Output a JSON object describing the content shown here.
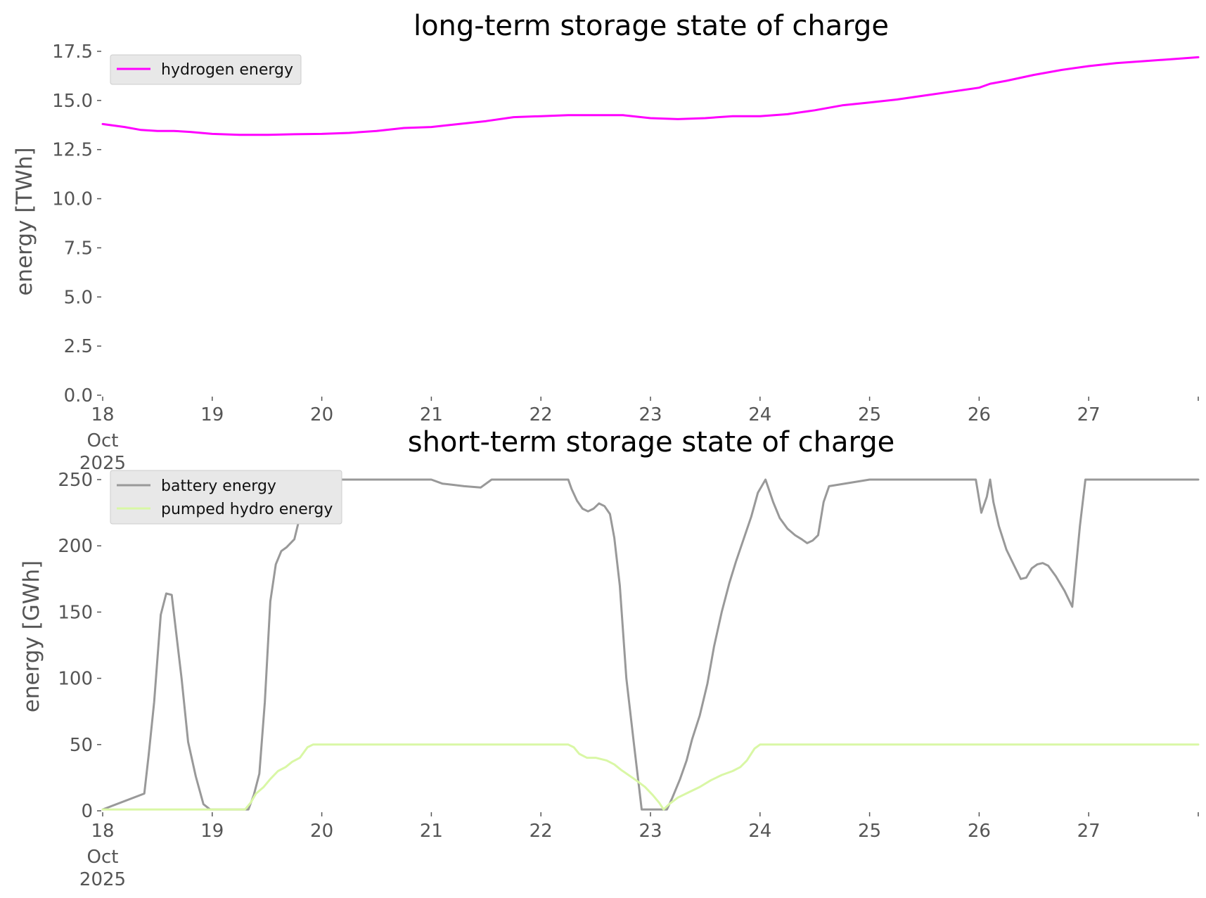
{
  "colors": {
    "hydrogen": "#ff00ff",
    "battery": "#999999",
    "pumped_hydro": "#d9f7a5",
    "legend_bg": "#e8e8e8",
    "tick_text": "#555555"
  },
  "chart_data": [
    {
      "type": "line",
      "title": "long-term storage state of charge",
      "xlabel": "",
      "ylabel": "energy [TWh]",
      "x_ticks": [
        "18",
        "19",
        "20",
        "21",
        "22",
        "23",
        "24",
        "25",
        "26",
        "27"
      ],
      "x_first_sub": [
        "Oct",
        "2025"
      ],
      "x_unit": "day of Oct 2025",
      "xlim": [
        18,
        28
      ],
      "ylim": [
        0,
        17.5
      ],
      "y_ticks": [
        "0.0",
        "2.5",
        "5.0",
        "7.5",
        "10.0",
        "12.5",
        "15.0",
        "17.5"
      ],
      "grid": false,
      "legend": "top-left",
      "series": [
        {
          "name": "hydrogen energy",
          "color": "#ff00ff",
          "x": [
            18.0,
            18.2,
            18.35,
            18.5,
            18.65,
            18.8,
            19.0,
            19.25,
            19.5,
            19.75,
            20.0,
            20.25,
            20.5,
            20.75,
            21.0,
            21.25,
            21.5,
            21.75,
            22.0,
            22.25,
            22.5,
            22.75,
            23.0,
            23.25,
            23.5,
            23.75,
            24.0,
            24.25,
            24.5,
            24.75,
            25.0,
            25.25,
            25.5,
            25.75,
            26.0,
            26.1,
            26.25,
            26.5,
            26.75,
            27.0,
            27.25,
            27.5,
            27.75,
            28.0
          ],
          "y": [
            13.8,
            13.65,
            13.5,
            13.45,
            13.45,
            13.4,
            13.3,
            13.25,
            13.25,
            13.28,
            13.3,
            13.35,
            13.45,
            13.6,
            13.65,
            13.8,
            13.95,
            14.15,
            14.2,
            14.25,
            14.25,
            14.25,
            14.1,
            14.05,
            14.1,
            14.2,
            14.2,
            14.3,
            14.5,
            14.75,
            14.9,
            15.05,
            15.25,
            15.45,
            15.65,
            15.85,
            16.0,
            16.3,
            16.55,
            16.75,
            16.9,
            17.0,
            17.1,
            17.2
          ]
        }
      ]
    },
    {
      "type": "line",
      "title": "short-term storage state of charge",
      "xlabel": "",
      "ylabel": "energy [GWh]",
      "x_ticks": [
        "18",
        "19",
        "20",
        "21",
        "22",
        "23",
        "24",
        "25",
        "26",
        "27"
      ],
      "x_first_sub": [
        "Oct",
        "2025"
      ],
      "x_unit": "day of Oct 2025",
      "xlim": [
        18,
        28
      ],
      "ylim": [
        0,
        250
      ],
      "y_ticks": [
        "0",
        "50",
        "100",
        "150",
        "200",
        "250"
      ],
      "grid": false,
      "legend": "top-left",
      "series": [
        {
          "name": "battery energy",
          "color": "#999999",
          "x": [
            18.0,
            18.38,
            18.42,
            18.47,
            18.53,
            18.58,
            18.63,
            18.67,
            18.72,
            18.78,
            18.85,
            18.92,
            18.98,
            19.0,
            19.33,
            19.38,
            19.43,
            19.48,
            19.53,
            19.58,
            19.63,
            19.68,
            19.75,
            19.8,
            19.85,
            19.92,
            19.97,
            20.5,
            21.0,
            21.1,
            21.2,
            21.3,
            21.45,
            21.55,
            22.0,
            22.25,
            22.28,
            22.33,
            22.38,
            22.43,
            22.48,
            22.53,
            22.58,
            22.63,
            22.67,
            22.72,
            22.78,
            22.85,
            22.92,
            22.98,
            23.15,
            23.2,
            23.27,
            23.33,
            23.38,
            23.45,
            23.52,
            23.58,
            23.65,
            23.72,
            23.78,
            23.85,
            23.92,
            23.98,
            24.05,
            24.12,
            24.18,
            24.25,
            24.32,
            24.38,
            24.43,
            24.48,
            24.53,
            24.58,
            24.63,
            25.0,
            25.5,
            25.97,
            26.02,
            26.07,
            26.1,
            26.13,
            26.18,
            26.25,
            26.32,
            26.38,
            26.43,
            26.48,
            26.53,
            26.58,
            26.63,
            26.7,
            26.78,
            26.85,
            26.92,
            26.97,
            27.5,
            28.0
          ],
          "y": [
            1,
            13,
            42,
            82,
            148,
            164,
            163,
            135,
            100,
            52,
            26,
            5,
            1,
            1,
            1,
            12,
            28,
            82,
            158,
            186,
            196,
            199,
            205,
            222,
            244,
            250,
            250,
            250,
            250,
            247,
            246,
            245,
            244,
            250,
            250,
            250,
            243,
            234,
            228,
            226,
            228,
            232,
            230,
            224,
            206,
            170,
            100,
            50,
            1,
            1,
            1,
            10,
            24,
            38,
            54,
            72,
            96,
            124,
            150,
            172,
            188,
            205,
            222,
            240,
            250,
            233,
            221,
            213,
            208,
            205,
            202,
            204,
            208,
            233,
            245,
            250,
            250,
            250,
            225,
            237,
            250,
            233,
            215,
            197,
            185,
            175,
            176,
            183,
            186,
            187,
            185,
            177,
            166,
            154,
            215,
            250,
            250,
            250
          ]
        },
        {
          "name": "pumped hydro energy",
          "color": "#d9f7a5",
          "x": [
            18.0,
            19.3,
            19.35,
            19.4,
            19.47,
            19.53,
            19.6,
            19.67,
            19.73,
            19.8,
            19.87,
            19.92,
            19.97,
            20.5,
            22.0,
            22.25,
            22.3,
            22.35,
            22.42,
            22.5,
            22.6,
            22.67,
            22.73,
            22.8,
            22.87,
            22.95,
            23.02,
            23.08,
            23.12,
            23.17,
            23.25,
            23.35,
            23.45,
            23.55,
            23.65,
            23.75,
            23.82,
            23.88,
            23.95,
            24.0,
            25.0,
            26.0,
            27.0,
            28.0
          ],
          "y": [
            1,
            1,
            6,
            13,
            18,
            24,
            30,
            33,
            37,
            40,
            48,
            50,
            50,
            50,
            50,
            50,
            48,
            43,
            40,
            40,
            38,
            35,
            31,
            27,
            23,
            18,
            12,
            6,
            1,
            5,
            10,
            14,
            18,
            23,
            27,
            30,
            33,
            38,
            47,
            50,
            50,
            50,
            50,
            50
          ]
        },
        {
          "name": "",
          "color": "",
          "x": [],
          "y": []
        }
      ]
    }
  ]
}
